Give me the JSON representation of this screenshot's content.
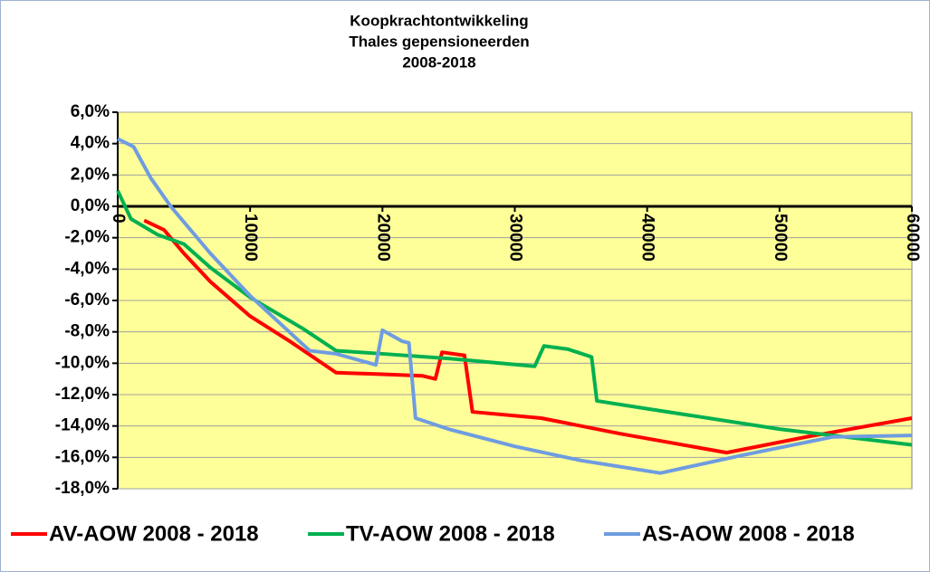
{
  "chart_data": {
    "type": "line",
    "title": [
      "Koopkrachtontwikkeling",
      "Thales gepensioneerden",
      "2008-2018"
    ],
    "xlim": [
      0,
      60000
    ],
    "xticks": [
      0,
      10000,
      20000,
      30000,
      40000,
      50000,
      60000
    ],
    "ylim": [
      -18,
      6
    ],
    "yticks": [
      {
        "value": 6,
        "label": "6,0%"
      },
      {
        "value": 4,
        "label": "4,0%"
      },
      {
        "value": 2,
        "label": "2,0%"
      },
      {
        "value": 0,
        "label": "0,0%"
      },
      {
        "value": -2,
        "label": "-2,0%"
      },
      {
        "value": -4,
        "label": "-4,0%"
      },
      {
        "value": -6,
        "label": "-6,0%"
      },
      {
        "value": -8,
        "label": "-8,0%"
      },
      {
        "value": -10,
        "label": "-10,0%"
      },
      {
        "value": -12,
        "label": "-12,0%"
      },
      {
        "value": -14,
        "label": "-14,0%"
      },
      {
        "value": -16,
        "label": "-16,0%"
      },
      {
        "value": -18,
        "label": "-18,0%"
      }
    ],
    "grid": true,
    "plot_background": "#ffff99",
    "legend": "bottom",
    "series": [
      {
        "name": "AV-AOW 2008 - 2018",
        "color": "#ff0000",
        "x": [
          2000,
          2500,
          3500,
          5000,
          7000,
          10000,
          13000,
          16500,
          20000,
          23000,
          24000,
          24500,
          26200,
          26800,
          32000,
          38000,
          46000,
          52000,
          60000
        ],
        "values": [
          -0.9,
          -1.1,
          -1.5,
          -3.0,
          -4.8,
          -7.0,
          -8.6,
          -10.6,
          -10.7,
          -10.8,
          -11.0,
          -9.3,
          -9.5,
          -13.1,
          -13.5,
          -14.5,
          -15.7,
          -14.7,
          -13.5
        ]
      },
      {
        "name": "TV-AOW 2008 - 2018",
        "color": "#00b050",
        "x": [
          0,
          1000,
          3000,
          5000,
          7000,
          10000,
          14000,
          16500,
          20000,
          25000,
          31500,
          32200,
          34000,
          35800,
          36200,
          40000,
          50000,
          60000
        ],
        "values": [
          1.0,
          -0.8,
          -1.8,
          -2.4,
          -3.9,
          -5.8,
          -7.8,
          -9.2,
          -9.4,
          -9.7,
          -10.2,
          -8.9,
          -9.1,
          -9.6,
          -12.4,
          -12.9,
          -14.2,
          -15.2
        ]
      },
      {
        "name": "AS-AOW 2008 - 2018",
        "color": "#6f9ce0",
        "x": [
          0,
          1200,
          2500,
          4000,
          5500,
          7000,
          10000,
          14500,
          16500,
          19500,
          20000,
          21500,
          22000,
          22500,
          25000,
          30000,
          35000,
          41000,
          47000,
          54000,
          60000
        ],
        "values": [
          4.3,
          3.8,
          1.8,
          0,
          -1.5,
          -3.0,
          -5.7,
          -9.2,
          -9.4,
          -10.1,
          -7.9,
          -8.6,
          -8.7,
          -13.5,
          -14.2,
          -15.3,
          -16.2,
          -17.0,
          -15.9,
          -14.7,
          -14.6
        ]
      }
    ]
  }
}
